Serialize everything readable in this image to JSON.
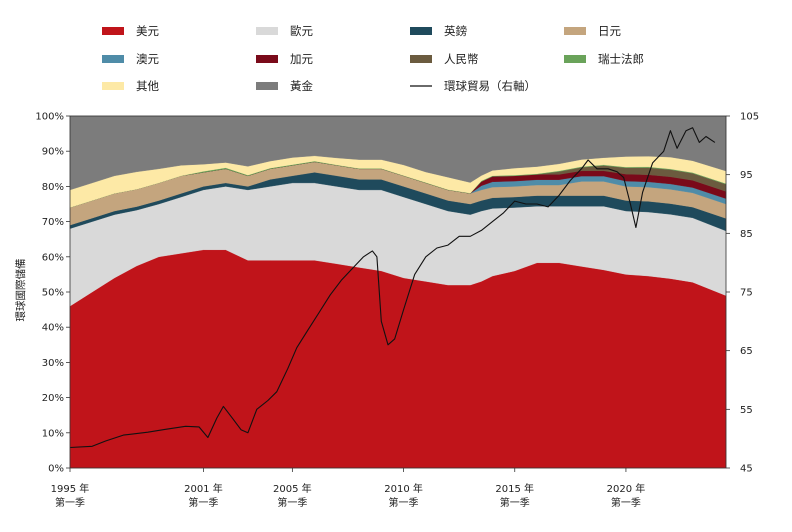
{
  "chart_data": {
    "type": "area",
    "stacking": "percent",
    "title": "",
    "ylabel_left": "環球國際儲備",
    "ylabel_right": "",
    "ylim_left": [
      0,
      100
    ],
    "ylim_right": [
      45,
      105
    ],
    "y_ticks_left": [
      "0%",
      "10%",
      "20%",
      "30%",
      "40%",
      "50%",
      "60%",
      "70%",
      "80%",
      "90%",
      "100%"
    ],
    "y_ticks_right": [
      "45",
      "55",
      "65",
      "75",
      "85",
      "95",
      "105"
    ],
    "x_ticks": [
      {
        "year": 1995,
        "line1": "1995 年",
        "line2": "第一季"
      },
      {
        "year": 2001,
        "line1": "2001 年",
        "line2": "第一季"
      },
      {
        "year": 2005,
        "line1": "2005 年",
        "line2": "第一季"
      },
      {
        "year": 2010,
        "line1": "2010 年",
        "line2": "第一季"
      },
      {
        "year": 2015,
        "line1": "2015 年",
        "line2": "第一季"
      },
      {
        "year": 2020,
        "line1": "2020 年",
        "line2": "第一季"
      }
    ],
    "legend": [
      {
        "name": "美元",
        "color": "#c0141a",
        "kind": "area"
      },
      {
        "name": "歐元",
        "color": "#d9d9d9",
        "kind": "area"
      },
      {
        "name": "英鎊",
        "color": "#1f4a5c",
        "kind": "area"
      },
      {
        "name": "日元",
        "color": "#c4a57e",
        "kind": "area"
      },
      {
        "name": "澳元",
        "color": "#4f8ca8",
        "kind": "area"
      },
      {
        "name": "加元",
        "color": "#7a0a1a",
        "kind": "area"
      },
      {
        "name": "人民幣",
        "color": "#6b5b3f",
        "kind": "area"
      },
      {
        "name": "瑞士法郎",
        "color": "#6aa35a",
        "kind": "area"
      },
      {
        "name": "其他",
        "color": "#fde9a6",
        "kind": "area"
      },
      {
        "name": "黃金",
        "color": "#7c7c7c",
        "kind": "area"
      },
      {
        "name": "環球貿易（右軸）",
        "color": "#111111",
        "kind": "line"
      }
    ],
    "x": [
      1995.0,
      1996.0,
      1997.0,
      1998.0,
      1999.0,
      2000.0,
      2001.0,
      2002.0,
      2003.0,
      2004.0,
      2005.0,
      2006.0,
      2007.0,
      2008.0,
      2009.0,
      2010.0,
      2011.0,
      2012.0,
      2013.0,
      2013.5,
      2014.0,
      2015.0,
      2016.0,
      2017.0,
      2018.0,
      2019.0,
      2020.0,
      2021.0,
      2022.0,
      2023.0,
      2024.5
    ],
    "series": [
      {
        "name": "美元",
        "values": [
          46,
          50,
          54,
          58,
          60,
          61,
          62,
          62,
          59,
          59,
          59,
          59,
          58,
          57,
          56,
          54,
          53,
          52,
          52,
          53,
          54,
          56,
          58,
          58,
          57,
          56,
          55,
          54,
          53,
          52,
          48
        ]
      },
      {
        "name": "歐元",
        "values": [
          22,
          20,
          18,
          16,
          15,
          16,
          17,
          18,
          20,
          21,
          22,
          22,
          22,
          22,
          23,
          23,
          22,
          21,
          20,
          20,
          19,
          18,
          16,
          16,
          17,
          18,
          18,
          18,
          18,
          18,
          18
        ]
      },
      {
        "name": "英鎊",
        "values": [
          1,
          1,
          1,
          1,
          1,
          1,
          1,
          1,
          1,
          2,
          2,
          3,
          3,
          3,
          3,
          3,
          3,
          3,
          3,
          3,
          3,
          3,
          3,
          3,
          3,
          3,
          3,
          3,
          3,
          3,
          3.5
        ]
      },
      {
        "name": "日元",
        "values": [
          5,
          5,
          5,
          5,
          5,
          5,
          4,
          4,
          3,
          3,
          3,
          3,
          3,
          3,
          3,
          3,
          3,
          3,
          3,
          3,
          3,
          3,
          3,
          3,
          4,
          4,
          4,
          4,
          4,
          4,
          4
        ]
      },
      {
        "name": "澳元",
        "values": [
          0,
          0,
          0,
          0,
          0,
          0,
          0,
          0,
          0,
          0,
          0,
          0,
          0,
          0,
          0,
          0,
          0,
          0,
          0,
          1.2,
          1.5,
          1.5,
          1.5,
          1.5,
          1.5,
          1.5,
          1.5,
          1.5,
          1.5,
          1.5,
          1.5
        ]
      },
      {
        "name": "加元",
        "values": [
          0,
          0,
          0,
          0,
          0,
          0,
          0,
          0,
          0,
          0,
          0,
          0,
          0,
          0,
          0,
          0,
          0,
          0,
          0,
          1.2,
          1.5,
          1.5,
          1.5,
          1.5,
          1.5,
          1.5,
          2,
          2,
          2,
          2,
          2
        ]
      },
      {
        "name": "人民幣",
        "values": [
          0,
          0,
          0,
          0,
          0,
          0,
          0,
          0,
          0,
          0,
          0,
          0,
          0,
          0,
          0,
          0,
          0,
          0,
          0,
          0,
          0,
          0,
          0,
          0.8,
          1,
          1.5,
          1.8,
          2,
          2,
          2,
          2
        ]
      },
      {
        "name": "瑞士法郎",
        "values": [
          0,
          0,
          0,
          0,
          0,
          0,
          0.3,
          0.3,
          0.2,
          0.2,
          0.2,
          0.2,
          0.1,
          0.1,
          0.1,
          0.1,
          0.1,
          0.1,
          0.1,
          0.2,
          0.2,
          0.2,
          0.2,
          0.2,
          0.2,
          0.2,
          0.2,
          0.2,
          0.2,
          0.2,
          0.2
        ]
      },
      {
        "name": "其他",
        "values": [
          5,
          5,
          5,
          5,
          4,
          3,
          2,
          1.5,
          2.5,
          2,
          2,
          1.5,
          2,
          2.5,
          2.5,
          3,
          3,
          3.5,
          3,
          1.5,
          1.5,
          2,
          2,
          2,
          2,
          2,
          3,
          3,
          3.3,
          3.3,
          3.5
        ]
      },
      {
        "name": "黃金",
        "values": [
          21,
          19,
          17,
          16,
          15,
          14,
          13.7,
          13.2,
          14.3,
          12.8,
          11.8,
          11.3,
          11.9,
          12.4,
          12.4,
          13.9,
          15.9,
          17.4,
          18.9,
          16.9,
          15.3,
          14.8,
          14.3,
          13.5,
          12.3,
          11.8,
          11.5,
          11.3,
          11.5,
          12.5,
          15.3
        ]
      }
    ],
    "trade_line": {
      "name": "環球貿易（右軸）",
      "axis": "right",
      "points": [
        [
          1995.0,
          48.5
        ],
        [
          1996.0,
          48.7
        ],
        [
          1996.6,
          49.6
        ],
        [
          1997.4,
          50.6
        ],
        [
          1998.5,
          51.1
        ],
        [
          1999.3,
          51.6
        ],
        [
          2000.2,
          52.1
        ],
        [
          2000.8,
          52.0
        ],
        [
          2001.2,
          50.2
        ],
        [
          2001.6,
          53.5
        ],
        [
          2001.9,
          55.5
        ],
        [
          2002.3,
          53.5
        ],
        [
          2002.7,
          51.5
        ],
        [
          2003.0,
          51.0
        ],
        [
          2003.4,
          55.0
        ],
        [
          2003.9,
          56.5
        ],
        [
          2004.3,
          58.0
        ],
        [
          2004.8,
          62.0
        ],
        [
          2005.2,
          65.5
        ],
        [
          2005.7,
          68.5
        ],
        [
          2006.2,
          71.5
        ],
        [
          2006.7,
          74.5
        ],
        [
          2007.2,
          77.0
        ],
        [
          2007.7,
          79.0
        ],
        [
          2008.2,
          81.0
        ],
        [
          2008.6,
          82.0
        ],
        [
          2008.8,
          81.0
        ],
        [
          2009.0,
          70.0
        ],
        [
          2009.3,
          66.0
        ],
        [
          2009.6,
          67.0
        ],
        [
          2010.0,
          72.0
        ],
        [
          2010.5,
          78.0
        ],
        [
          2011.0,
          81.0
        ],
        [
          2011.5,
          82.5
        ],
        [
          2012.0,
          83.0
        ],
        [
          2012.5,
          84.5
        ],
        [
          2013.0,
          84.5
        ],
        [
          2013.5,
          85.5
        ],
        [
          2014.0,
          87.0
        ],
        [
          2014.5,
          88.5
        ],
        [
          2015.0,
          90.5
        ],
        [
          2015.5,
          90.0
        ],
        [
          2016.0,
          90.0
        ],
        [
          2016.5,
          89.5
        ],
        [
          2017.0,
          91.5
        ],
        [
          2017.5,
          94.0
        ],
        [
          2018.0,
          96.0
        ],
        [
          2018.3,
          97.5
        ],
        [
          2018.7,
          96.0
        ],
        [
          2019.2,
          96.0
        ],
        [
          2019.6,
          95.5
        ],
        [
          2019.9,
          94.5
        ],
        [
          2020.2,
          90.0
        ],
        [
          2020.45,
          86.0
        ],
        [
          2020.75,
          92.0
        ],
        [
          2021.2,
          97.0
        ],
        [
          2021.7,
          99.0
        ],
        [
          2022.0,
          102.5
        ],
        [
          2022.3,
          99.5
        ],
        [
          2022.7,
          102.5
        ],
        [
          2023.0,
          103.0
        ],
        [
          2023.3,
          100.5
        ],
        [
          2023.6,
          101.5
        ],
        [
          2024.0,
          100.5
        ]
      ]
    }
  }
}
